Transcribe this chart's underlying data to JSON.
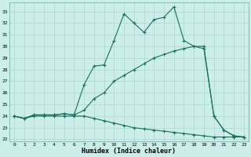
{
  "xlabel": "Humidex (Indice chaleur)",
  "ylabel": "",
  "bg_color": "#cceee8",
  "grid_color": "#aad4ce",
  "line_color": "#1a6e5e",
  "x_min": -0.5,
  "x_max": 23.5,
  "y_min": 21.8,
  "y_max": 33.8,
  "yticks": [
    22,
    23,
    24,
    25,
    26,
    27,
    28,
    29,
    30,
    31,
    32,
    33
  ],
  "xticks": [
    0,
    1,
    2,
    3,
    4,
    5,
    6,
    7,
    8,
    9,
    10,
    11,
    12,
    13,
    14,
    15,
    16,
    17,
    18,
    19,
    20,
    21,
    22,
    23
  ],
  "line1_x": [
    0,
    1,
    2,
    3,
    4,
    5,
    6,
    7,
    8,
    9,
    10,
    11,
    12,
    13,
    14,
    15,
    16,
    17,
    18,
    19,
    20,
    21,
    22,
    23
  ],
  "line1_y": [
    24.0,
    23.8,
    24.1,
    24.1,
    24.1,
    24.2,
    24.1,
    26.7,
    28.3,
    28.4,
    30.5,
    32.8,
    32.0,
    31.2,
    32.3,
    32.5,
    33.4,
    30.5,
    30.0,
    29.8,
    24.0,
    22.8,
    22.3,
    22.2
  ],
  "line2_x": [
    0,
    1,
    2,
    3,
    4,
    5,
    6,
    7,
    8,
    9,
    10,
    11,
    12,
    13,
    14,
    15,
    16,
    17,
    18,
    19,
    20,
    21,
    22,
    23
  ],
  "line2_y": [
    24.0,
    23.8,
    24.1,
    24.1,
    24.1,
    24.2,
    24.1,
    24.5,
    25.5,
    26.0,
    27.0,
    27.5,
    28.0,
    28.5,
    29.0,
    29.3,
    29.6,
    29.8,
    30.0,
    30.0,
    24.0,
    22.8,
    22.3,
    22.2
  ],
  "line3_x": [
    0,
    1,
    2,
    3,
    4,
    5,
    6,
    7,
    8,
    9,
    10,
    11,
    12,
    13,
    14,
    15,
    16,
    17,
    18,
    19,
    20,
    21,
    22,
    23
  ],
  "line3_y": [
    24.0,
    23.8,
    24.0,
    24.0,
    24.0,
    24.0,
    24.0,
    24.0,
    23.8,
    23.6,
    23.4,
    23.2,
    23.0,
    22.9,
    22.8,
    22.7,
    22.6,
    22.5,
    22.4,
    22.3,
    22.2,
    22.2,
    22.2,
    22.2
  ]
}
